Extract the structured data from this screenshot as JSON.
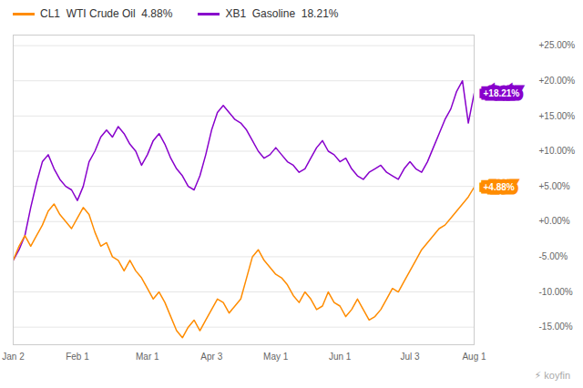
{
  "chart_data": {
    "type": "line",
    "categories": [
      "Jan 2",
      null,
      null,
      null,
      null,
      null,
      null,
      null,
      null,
      null,
      null,
      "Feb 1",
      null,
      null,
      null,
      null,
      null,
      null,
      null,
      null,
      null,
      null,
      null,
      "Mar 1",
      null,
      null,
      null,
      null,
      null,
      null,
      null,
      null,
      null,
      null,
      "Apr 3",
      null,
      null,
      null,
      null,
      null,
      null,
      null,
      null,
      null,
      null,
      "May 1",
      null,
      null,
      null,
      null,
      null,
      null,
      null,
      null,
      null,
      null,
      "Jun 1",
      null,
      null,
      null,
      null,
      null,
      null,
      null,
      null,
      null,
      null,
      null,
      "Jul 3",
      null,
      null,
      null,
      null,
      null,
      null,
      null,
      null,
      null,
      null,
      "Aug 1"
    ],
    "series": [
      {
        "name": "CL1  WTI Crude Oil  4.88%",
        "color": "#FF8C00",
        "values": [
          -5.5,
          -3.5,
          -2.0,
          -3.5,
          -2.0,
          -0.5,
          1.5,
          2.5,
          1.0,
          0.0,
          -1.0,
          0.5,
          2.0,
          1.0,
          -1.5,
          -3.5,
          -3.0,
          -5.0,
          -5.5,
          -7.0,
          -5.5,
          -7.0,
          -8.0,
          -9.5,
          -11.0,
          -10.0,
          -11.5,
          -13.5,
          -15.5,
          -16.5,
          -15.0,
          -14.0,
          -15.5,
          -14.0,
          -12.5,
          -11.0,
          -11.5,
          -13.0,
          -12.0,
          -11.0,
          -8.0,
          -5.0,
          -4.0,
          -5.5,
          -6.5,
          -7.5,
          -8.0,
          -9.0,
          -10.5,
          -11.5,
          -10.0,
          -11.0,
          -12.5,
          -12.0,
          -10.0,
          -11.5,
          -12.0,
          -13.5,
          -12.5,
          -11.0,
          -12.5,
          -14.0,
          -13.5,
          -12.5,
          -11.0,
          -9.5,
          -10.0,
          -8.5,
          -7.0,
          -5.5,
          -4.0,
          -3.0,
          -2.0,
          -1.0,
          -0.5,
          0.5,
          1.5,
          2.5,
          3.5,
          4.88
        ]
      },
      {
        "name": "XB1  Gasoline  18.21%",
        "color": "#8800CC",
        "values": [
          -5.5,
          -4.0,
          -2.0,
          2.0,
          5.5,
          8.5,
          9.5,
          7.5,
          6.0,
          5.0,
          4.5,
          3.0,
          5.0,
          8.5,
          10.0,
          12.0,
          13.0,
          12.0,
          13.5,
          12.5,
          11.0,
          10.0,
          8.0,
          9.5,
          11.5,
          12.5,
          11.0,
          9.0,
          7.5,
          6.5,
          5.0,
          4.5,
          6.5,
          9.5,
          13.0,
          15.5,
          16.5,
          15.5,
          14.5,
          14.0,
          13.0,
          11.5,
          10.0,
          9.0,
          9.5,
          10.5,
          9.5,
          8.5,
          8.0,
          7.0,
          7.5,
          9.0,
          10.5,
          11.5,
          10.0,
          9.5,
          8.5,
          9.0,
          7.5,
          6.5,
          6.0,
          7.0,
          7.5,
          8.0,
          7.0,
          6.5,
          6.0,
          7.5,
          8.5,
          7.5,
          7.0,
          8.5,
          10.5,
          12.5,
          14.5,
          16.0,
          18.5,
          20.0,
          14.0,
          18.21
        ]
      }
    ],
    "ylim": [
      -17.5,
      26.5
    ],
    "yticks": [
      {
        "value": 25.0,
        "label": "+25.00%"
      },
      {
        "value": 20.0,
        "label": "+20.00%"
      },
      {
        "value": 15.0,
        "label": "+15.00%"
      },
      {
        "value": 10.0,
        "label": "+10.00%"
      },
      {
        "value": 5.0,
        "label": "+5.00%"
      },
      {
        "value": 0.0,
        "label": "+0.00%"
      },
      {
        "value": -5.0,
        "label": "-5.00%"
      },
      {
        "value": -10.0,
        "label": "-10.00%"
      },
      {
        "value": -15.0,
        "label": "-15.00%"
      }
    ],
    "grid": true,
    "legend": "top",
    "annotations": [
      {
        "text": "+18.21%",
        "y": 18.21,
        "color": "#8800CC"
      },
      {
        "text": "+4.88%",
        "y": 4.88,
        "color": "#FF8C00"
      },
      {
        "text": "⚡ koyfin"
      }
    ]
  }
}
